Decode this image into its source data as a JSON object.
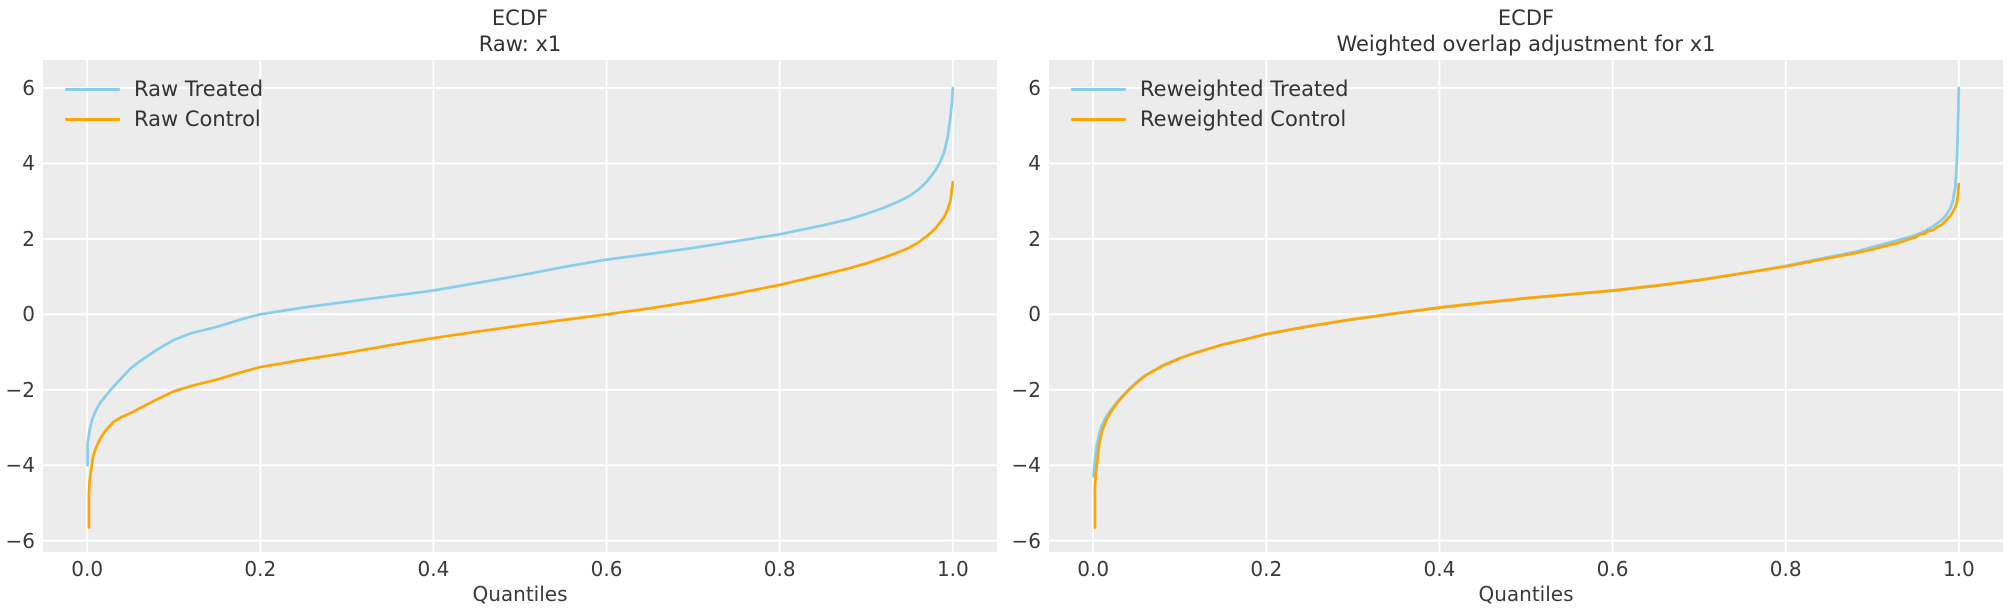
{
  "style": {
    "figure_bg": "#ffffff",
    "panel_bg": "#ececec",
    "grid_color": "#ffffff",
    "title_color": "#333333",
    "tick_color": "#3a3a3a",
    "treated_color": "#87ceeb",
    "control_color": "#ffa500"
  },
  "chart_data": [
    {
      "type": "line",
      "title": "ECDF",
      "subtitle": "Raw: x1",
      "xlabel": "Quantiles",
      "ylabel": "",
      "grid": true,
      "legend_position": "upper left",
      "xlim": [
        -0.051,
        1.051
      ],
      "ylim": [
        -6.3,
        6.74
      ],
      "xticks": [
        0.0,
        0.2,
        0.4,
        0.6,
        0.8,
        1.0
      ],
      "xticklabels": [
        "0.0",
        "0.2",
        "0.4",
        "0.6",
        "0.8",
        "1.0"
      ],
      "yticks": [
        -6,
        -4,
        -2,
        0,
        2,
        4,
        6
      ],
      "yticklabels": [
        "−6",
        "−4",
        "−2",
        "0",
        "2",
        "4",
        "6"
      ],
      "series": [
        {
          "name": "Raw Treated",
          "color": "#87ceeb",
          "points": [
            [
              0.0005,
              -4.0
            ],
            [
              0.0005,
              -3.45
            ],
            [
              0.003,
              -3.05
            ],
            [
              0.006,
              -2.78
            ],
            [
              0.01,
              -2.55
            ],
            [
              0.015,
              -2.35
            ],
            [
              0.02,
              -2.2
            ],
            [
              0.03,
              -1.93
            ],
            [
              0.04,
              -1.68
            ],
            [
              0.05,
              -1.44
            ],
            [
              0.06,
              -1.26
            ],
            [
              0.08,
              -0.95
            ],
            [
              0.1,
              -0.68
            ],
            [
              0.12,
              -0.5
            ],
            [
              0.15,
              -0.33
            ],
            [
              0.18,
              -0.12
            ],
            [
              0.2,
              0.0
            ],
            [
              0.25,
              0.18
            ],
            [
              0.3,
              0.33
            ],
            [
              0.35,
              0.48
            ],
            [
              0.4,
              0.63
            ],
            [
              0.45,
              0.83
            ],
            [
              0.5,
              1.03
            ],
            [
              0.55,
              1.25
            ],
            [
              0.6,
              1.45
            ],
            [
              0.65,
              1.6
            ],
            [
              0.7,
              1.76
            ],
            [
              0.75,
              1.94
            ],
            [
              0.8,
              2.12
            ],
            [
              0.85,
              2.36
            ],
            [
              0.88,
              2.52
            ],
            [
              0.9,
              2.66
            ],
            [
              0.92,
              2.82
            ],
            [
              0.94,
              3.02
            ],
            [
              0.95,
              3.14
            ],
            [
              0.96,
              3.3
            ],
            [
              0.97,
              3.52
            ],
            [
              0.98,
              3.82
            ],
            [
              0.985,
              4.02
            ],
            [
              0.99,
              4.3
            ],
            [
              0.994,
              4.7
            ],
            [
              0.997,
              5.2
            ],
            [
              0.999,
              5.6
            ],
            [
              1.0,
              6.0
            ]
          ]
        },
        {
          "name": "Raw Control",
          "color": "#ffa500",
          "points": [
            [
              0.002,
              -5.65
            ],
            [
              0.002,
              -4.75
            ],
            [
              0.003,
              -4.4
            ],
            [
              0.005,
              -4.05
            ],
            [
              0.007,
              -3.75
            ],
            [
              0.01,
              -3.55
            ],
            [
              0.015,
              -3.3
            ],
            [
              0.02,
              -3.12
            ],
            [
              0.03,
              -2.86
            ],
            [
              0.04,
              -2.72
            ],
            [
              0.05,
              -2.62
            ],
            [
              0.06,
              -2.5
            ],
            [
              0.08,
              -2.26
            ],
            [
              0.1,
              -2.04
            ],
            [
              0.12,
              -1.9
            ],
            [
              0.15,
              -1.73
            ],
            [
              0.18,
              -1.52
            ],
            [
              0.2,
              -1.4
            ],
            [
              0.25,
              -1.2
            ],
            [
              0.3,
              -1.02
            ],
            [
              0.35,
              -0.82
            ],
            [
              0.4,
              -0.63
            ],
            [
              0.45,
              -0.46
            ],
            [
              0.5,
              -0.3
            ],
            [
              0.55,
              -0.15
            ],
            [
              0.6,
              0.0
            ],
            [
              0.65,
              0.16
            ],
            [
              0.7,
              0.34
            ],
            [
              0.75,
              0.55
            ],
            [
              0.8,
              0.78
            ],
            [
              0.85,
              1.05
            ],
            [
              0.88,
              1.22
            ],
            [
              0.9,
              1.35
            ],
            [
              0.92,
              1.5
            ],
            [
              0.94,
              1.67
            ],
            [
              0.95,
              1.77
            ],
            [
              0.96,
              1.9
            ],
            [
              0.97,
              2.07
            ],
            [
              0.98,
              2.28
            ],
            [
              0.99,
              2.58
            ],
            [
              0.994,
              2.78
            ],
            [
              0.997,
              3.0
            ],
            [
              1.0,
              3.5
            ]
          ]
        }
      ]
    },
    {
      "type": "line",
      "title": "ECDF",
      "subtitle": "Weighted overlap adjustment for x1",
      "xlabel": "Quantiles",
      "ylabel": "",
      "grid": true,
      "legend_position": "upper left",
      "xlim": [
        -0.051,
        1.051
      ],
      "ylim": [
        -6.3,
        6.74
      ],
      "xticks": [
        0.0,
        0.2,
        0.4,
        0.6,
        0.8,
        1.0
      ],
      "xticklabels": [
        "0.0",
        "0.2",
        "0.4",
        "0.6",
        "0.8",
        "1.0"
      ],
      "yticks": [
        -6,
        -4,
        -2,
        0,
        2,
        4,
        6
      ],
      "yticklabels": [
        "−6",
        "−4",
        "−2",
        "0",
        "2",
        "4",
        "6"
      ],
      "series": [
        {
          "name": "Reweighted Treated",
          "color": "#87ceeb",
          "points": [
            [
              0.0005,
              -4.3
            ],
            [
              0.002,
              -3.85
            ],
            [
              0.004,
              -3.5
            ],
            [
              0.007,
              -3.17
            ],
            [
              0.01,
              -2.95
            ],
            [
              0.015,
              -2.72
            ],
            [
              0.02,
              -2.55
            ],
            [
              0.03,
              -2.26
            ],
            [
              0.04,
              -2.02
            ],
            [
              0.05,
              -1.8
            ],
            [
              0.06,
              -1.62
            ],
            [
              0.08,
              -1.36
            ],
            [
              0.1,
              -1.16
            ],
            [
              0.12,
              -1.0
            ],
            [
              0.15,
              -0.8
            ],
            [
              0.18,
              -0.64
            ],
            [
              0.2,
              -0.53
            ],
            [
              0.25,
              -0.32
            ],
            [
              0.3,
              -0.14
            ],
            [
              0.35,
              0.02
            ],
            [
              0.4,
              0.17
            ],
            [
              0.45,
              0.3
            ],
            [
              0.5,
              0.42
            ],
            [
              0.55,
              0.52
            ],
            [
              0.6,
              0.62
            ],
            [
              0.65,
              0.75
            ],
            [
              0.7,
              0.9
            ],
            [
              0.75,
              1.08
            ],
            [
              0.8,
              1.28
            ],
            [
              0.85,
              1.52
            ],
            [
              0.88,
              1.65
            ],
            [
              0.9,
              1.78
            ],
            [
              0.92,
              1.9
            ],
            [
              0.94,
              2.03
            ],
            [
              0.95,
              2.1
            ],
            [
              0.96,
              2.2
            ],
            [
              0.97,
              2.33
            ],
            [
              0.98,
              2.5
            ],
            [
              0.985,
              2.62
            ],
            [
              0.99,
              2.8
            ],
            [
              0.993,
              3.0
            ],
            [
              0.996,
              3.4
            ],
            [
              0.998,
              4.2
            ],
            [
              0.999,
              5.0
            ],
            [
              1.0,
              6.0
            ]
          ]
        },
        {
          "name": "Reweighted Control",
          "color": "#ffa500",
          "points": [
            [
              0.002,
              -5.65
            ],
            [
              0.002,
              -4.6
            ],
            [
              0.003,
              -4.25
            ],
            [
              0.005,
              -3.85
            ],
            [
              0.007,
              -3.45
            ],
            [
              0.01,
              -3.12
            ],
            [
              0.015,
              -2.82
            ],
            [
              0.02,
              -2.6
            ],
            [
              0.03,
              -2.28
            ],
            [
              0.04,
              -2.03
            ],
            [
              0.05,
              -1.82
            ],
            [
              0.06,
              -1.63
            ],
            [
              0.08,
              -1.37
            ],
            [
              0.1,
              -1.17
            ],
            [
              0.12,
              -1.01
            ],
            [
              0.15,
              -0.8
            ],
            [
              0.18,
              -0.64
            ],
            [
              0.2,
              -0.52
            ],
            [
              0.25,
              -0.31
            ],
            [
              0.3,
              -0.13
            ],
            [
              0.35,
              0.03
            ],
            [
              0.4,
              0.18
            ],
            [
              0.45,
              0.31
            ],
            [
              0.5,
              0.43
            ],
            [
              0.55,
              0.53
            ],
            [
              0.6,
              0.63
            ],
            [
              0.65,
              0.76
            ],
            [
              0.7,
              0.91
            ],
            [
              0.75,
              1.09
            ],
            [
              0.8,
              1.27
            ],
            [
              0.85,
              1.49
            ],
            [
              0.88,
              1.62
            ],
            [
              0.9,
              1.72
            ],
            [
              0.92,
              1.84
            ],
            [
              0.93,
              1.89
            ],
            [
              0.94,
              1.97
            ],
            [
              0.95,
              2.04
            ],
            [
              0.955,
              2.12
            ],
            [
              0.96,
              2.13
            ],
            [
              0.965,
              2.21
            ],
            [
              0.97,
              2.23
            ],
            [
              0.975,
              2.31
            ],
            [
              0.98,
              2.37
            ],
            [
              0.985,
              2.49
            ],
            [
              0.99,
              2.6
            ],
            [
              0.993,
              2.71
            ],
            [
              0.996,
              2.84
            ],
            [
              0.998,
              3.0
            ],
            [
              0.999,
              3.2
            ],
            [
              1.0,
              3.45
            ]
          ]
        }
      ]
    }
  ]
}
